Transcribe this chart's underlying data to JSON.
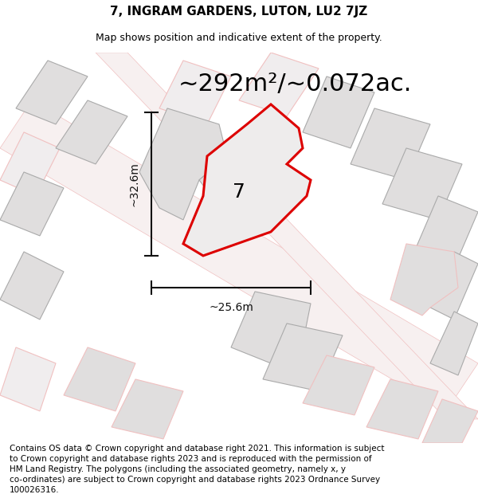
{
  "title": "7, INGRAM GARDENS, LUTON, LU2 7JZ",
  "subtitle": "Map shows position and indicative extent of the property.",
  "area_text": "~292m²/~0.072ac.",
  "width_label": "~25.6m",
  "height_label": "~32.6m",
  "plot_number": "7",
  "footer_text": "Contains OS data © Crown copyright and database right 2021. This information is subject to Crown copyright and database rights 2023 and is reproduced with the permission of HM Land Registry. The polygons (including the associated geometry, namely x, y co-ordinates) are subject to Crown copyright and database rights 2023 Ordnance Survey 100026316.",
  "bg_color": "#faf8f8",
  "road_color": "#f5eaea",
  "road_line_color": "#f0c0c0",
  "block_fill": "#e0dede",
  "block_edge_dark": "#aaaaaa",
  "block_edge_light": "#f0b0b0",
  "plot_fill": "#eeecec",
  "plot_edge": "#dd0000",
  "dim_color": "#111111",
  "title_fontsize": 11,
  "subtitle_fontsize": 9,
  "area_fontsize": 22,
  "plot_label_fontsize": 18,
  "dim_fontsize": 10,
  "footer_fontsize": 7.5
}
